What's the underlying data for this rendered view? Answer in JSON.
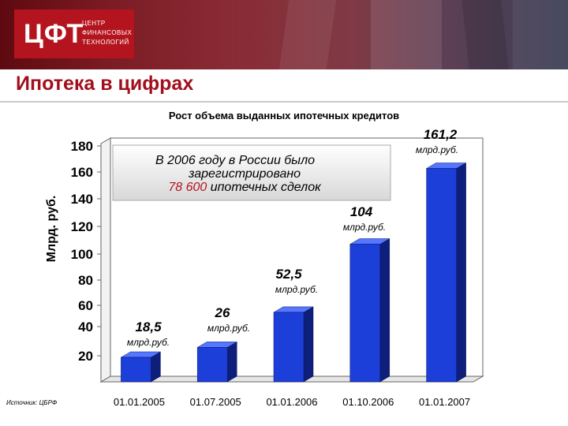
{
  "header": {
    "logo_main": "ЦФТ",
    "logo_sub": [
      "ЦЕНТР",
      "ФИНАНСОВЫХ",
      "ТЕХНОЛОГИЙ"
    ]
  },
  "page_title": "Ипотека в цифрах",
  "source_note": "Источник: ЦБРФ",
  "colors": {
    "bar": "#1c3fd9",
    "title": "#a10f1c",
    "logo": "#b4141e"
  },
  "chart_data": {
    "type": "bar",
    "title": "Рост объема выданных ипотечных кредитов",
    "xlabel": "",
    "ylabel": "Млрд. руб.",
    "categories": [
      "01.01.2005",
      "01.07.2005",
      "01.01.2006",
      "01.10.2006",
      "01.01.2007"
    ],
    "values": [
      18.5,
      26,
      52.5,
      104,
      161.2
    ],
    "value_labels": [
      "18,5",
      "26",
      "52,5",
      "104",
      "161,2"
    ],
    "unit_label": "млрд.руб.",
    "y_ticks": [
      "20",
      "40",
      "60",
      "80",
      "100",
      "120",
      "140",
      "160",
      "180"
    ],
    "ylim": [
      0,
      180
    ],
    "grid": false,
    "annotation": {
      "line1": "В 2006 году в России было",
      "line2": "зарегистрировано",
      "highlight": "78 600",
      "line3_rest": " ипотечных сделок"
    }
  }
}
